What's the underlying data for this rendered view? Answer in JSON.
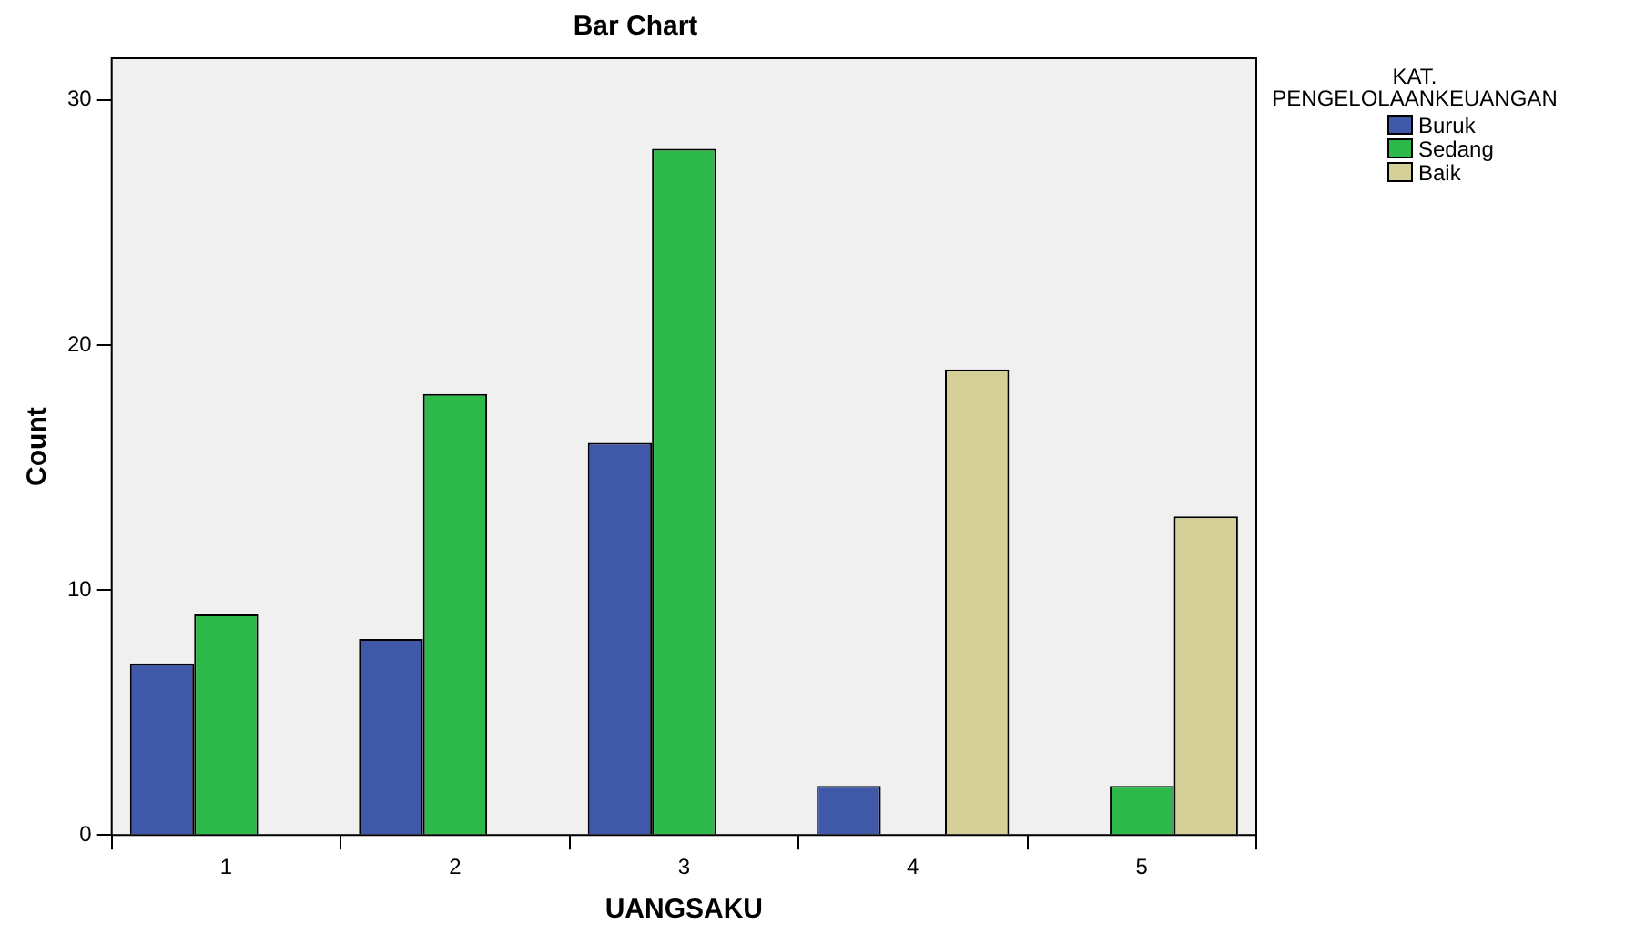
{
  "chart_data": {
    "type": "bar",
    "title": "Bar Chart",
    "xlabel": "UANGSAKU",
    "ylabel": "Count",
    "legend_title": "KAT. PENGELOLAANKEUANGAN",
    "categories": [
      "1",
      "2",
      "3",
      "4",
      "5"
    ],
    "series": [
      {
        "name": "Buruk",
        "color": "#3f58a8",
        "values": [
          7,
          8,
          16,
          2,
          null
        ]
      },
      {
        "name": "Sedang",
        "color": "#2db84a",
        "values": [
          9,
          18,
          28,
          null,
          2
        ]
      },
      {
        "name": "Baik",
        "color": "#d5cf98",
        "values": [
          null,
          null,
          null,
          19,
          13
        ]
      }
    ],
    "ylim": [
      0,
      31.7
    ],
    "yticks": [
      0,
      10,
      20,
      30
    ],
    "grid": false,
    "legend": "top right"
  }
}
